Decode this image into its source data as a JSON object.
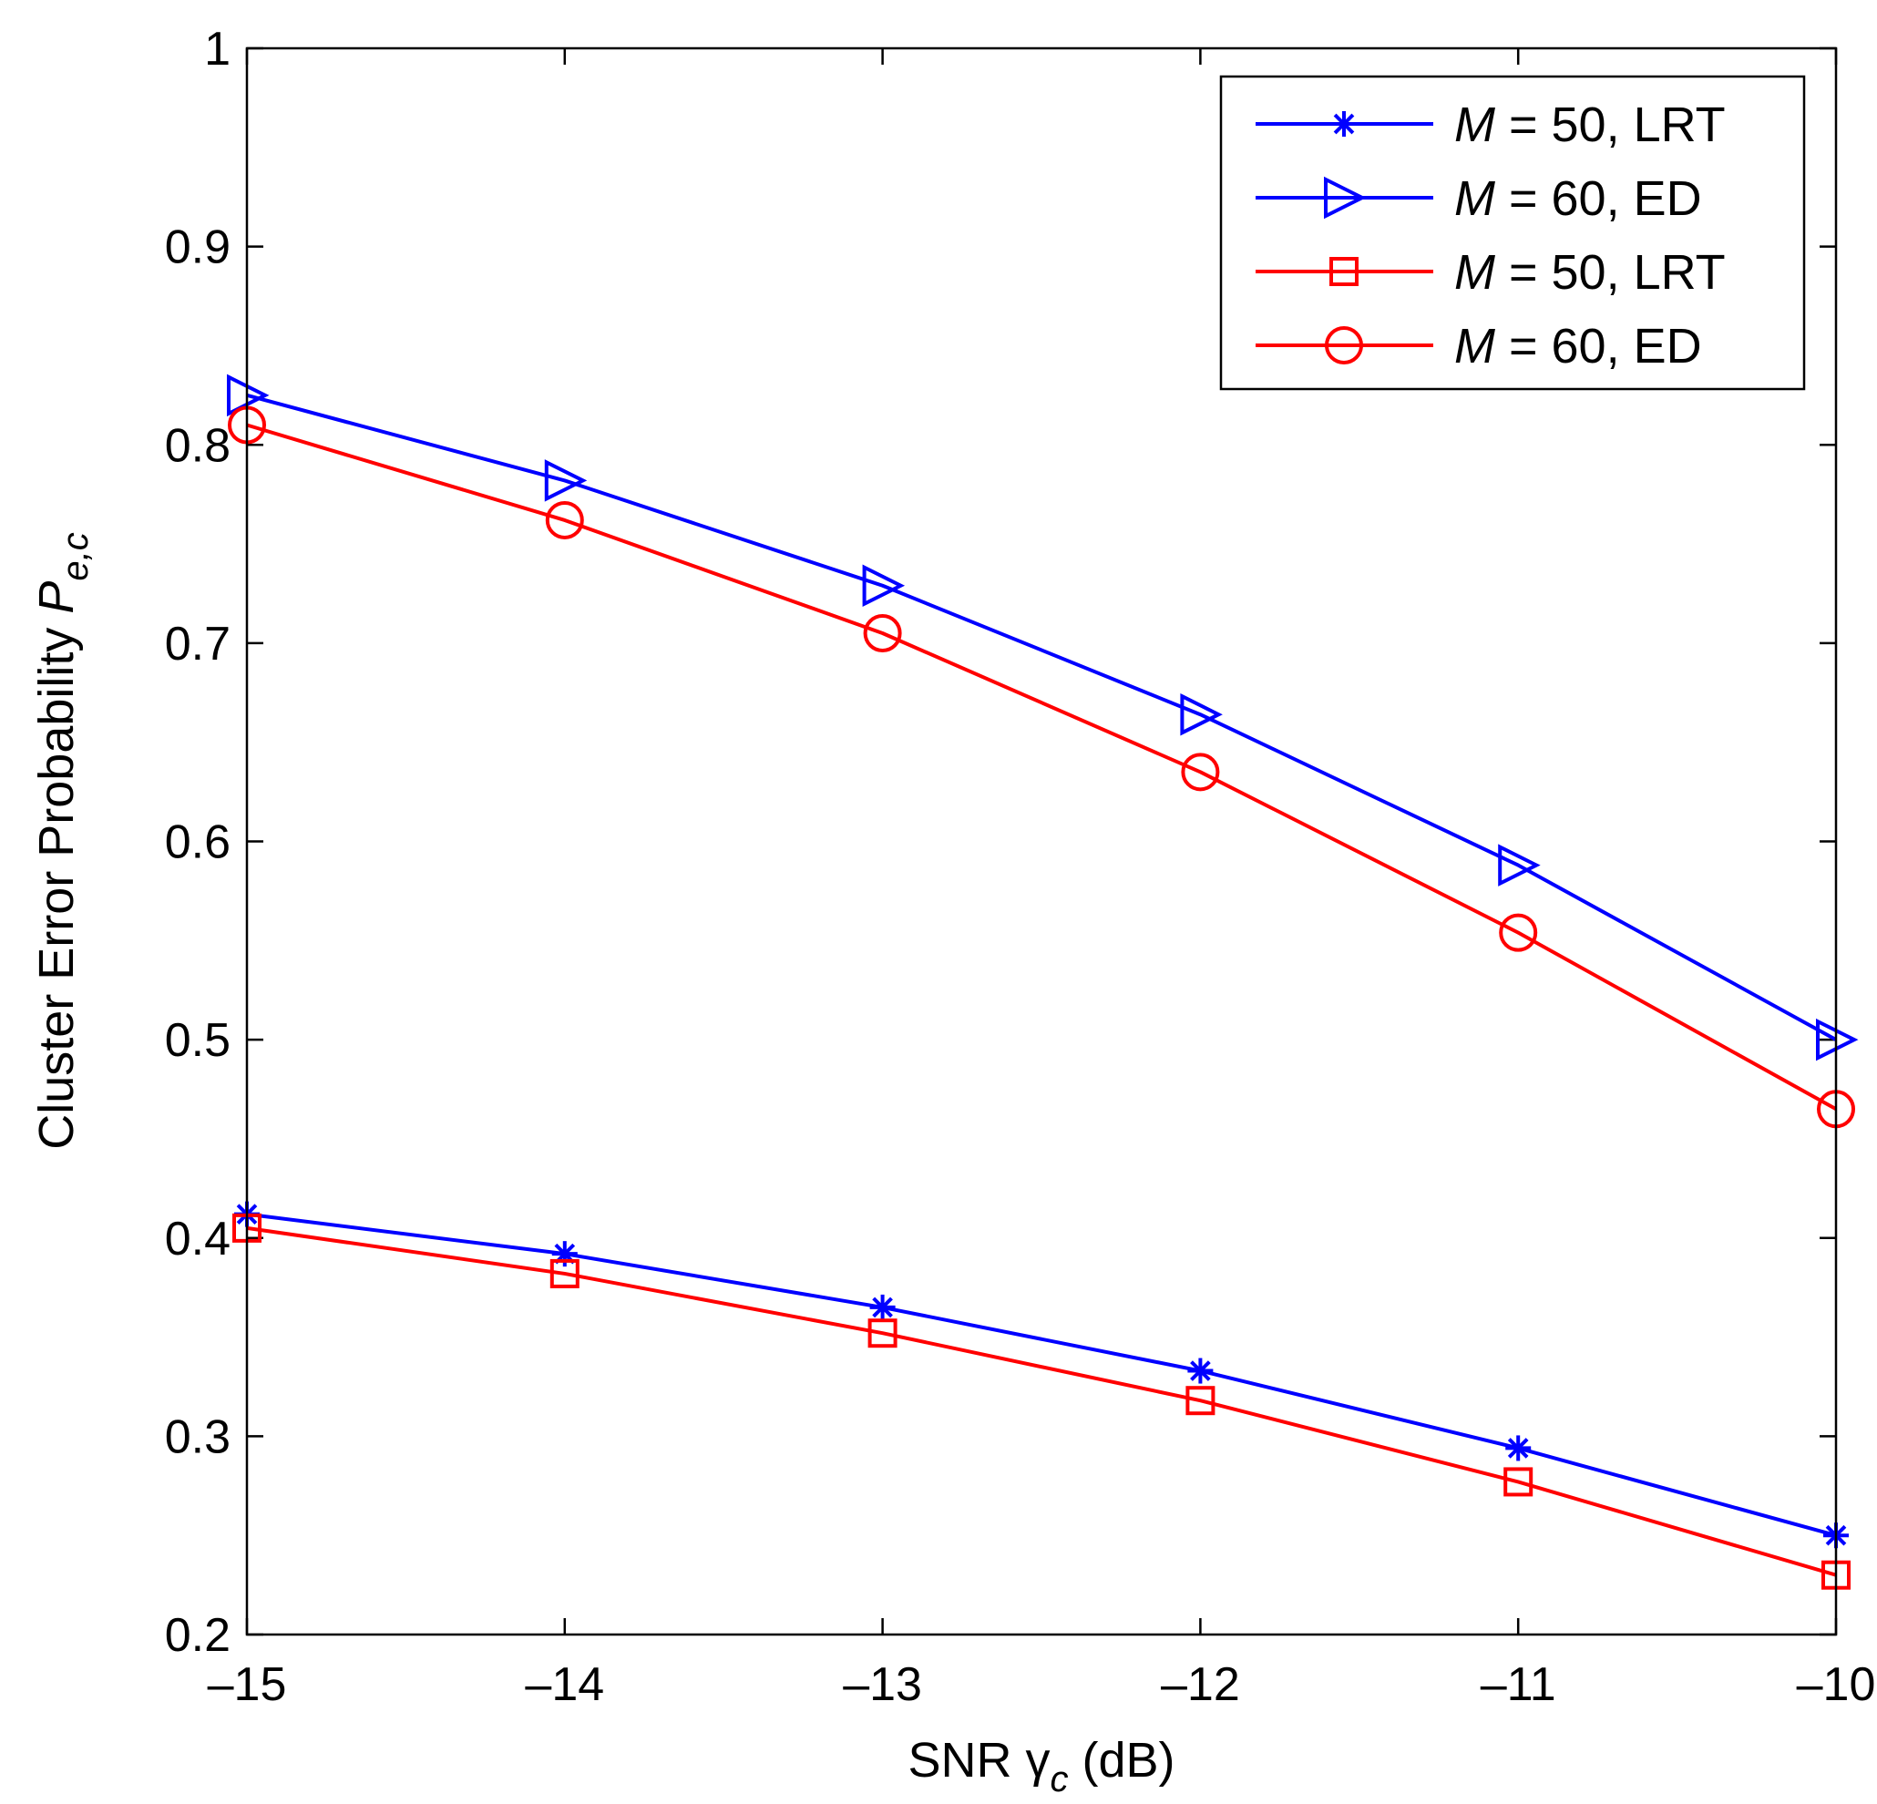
{
  "chart_data": {
    "type": "line",
    "title": "",
    "xlabel": {
      "prefix": "SNR ",
      "symbol": "γ",
      "subscript": "c",
      "suffix": " (dB)"
    },
    "ylabel": {
      "prefix": "Cluster Error Probability ",
      "symbol": "P",
      "subscript": "e,c"
    },
    "x": [
      -15,
      -14,
      -13,
      -12,
      -11,
      -10
    ],
    "xlim": [
      -15,
      -10
    ],
    "ylim": [
      0.2,
      1
    ],
    "xticks": [
      -15,
      -14,
      -13,
      -12,
      -11,
      -10
    ],
    "xtick_labels": [
      "–15",
      "–14",
      "–13",
      "–12",
      "–11",
      "–10"
    ],
    "yticks": [
      0.2,
      0.3,
      0.4,
      0.5,
      0.6,
      0.7,
      0.8,
      0.9,
      1
    ],
    "ytick_labels": [
      "0.2",
      "0.3",
      "0.4",
      "0.5",
      "0.6",
      "0.7",
      "0.8",
      "0.9",
      "1"
    ],
    "grid": false,
    "legend_position": "top-right",
    "series": [
      {
        "name": "M = 50, LRT",
        "legend_var": "M",
        "legend_rest": " = 50, LRT",
        "color": "#0000ff",
        "marker": "asterisk",
        "values": [
          0.412,
          0.392,
          0.365,
          0.333,
          0.294,
          0.25
        ]
      },
      {
        "name": "M = 60, ED",
        "legend_var": "M",
        "legend_rest": " = 60, ED",
        "color": "#0000ff",
        "marker": "triangle-right",
        "values": [
          0.825,
          0.782,
          0.729,
          0.664,
          0.588,
          0.5
        ]
      },
      {
        "name": "M = 50, LRT",
        "legend_var": "M",
        "legend_rest": " = 50, LRT",
        "color": "#ff0000",
        "marker": "square",
        "values": [
          0.405,
          0.382,
          0.352,
          0.318,
          0.277,
          0.23
        ]
      },
      {
        "name": "M = 60, ED",
        "legend_var": "M",
        "legend_rest": " = 60, ED",
        "color": "#ff0000",
        "marker": "circle",
        "values": [
          0.81,
          0.762,
          0.705,
          0.635,
          0.554,
          0.465
        ]
      }
    ]
  }
}
